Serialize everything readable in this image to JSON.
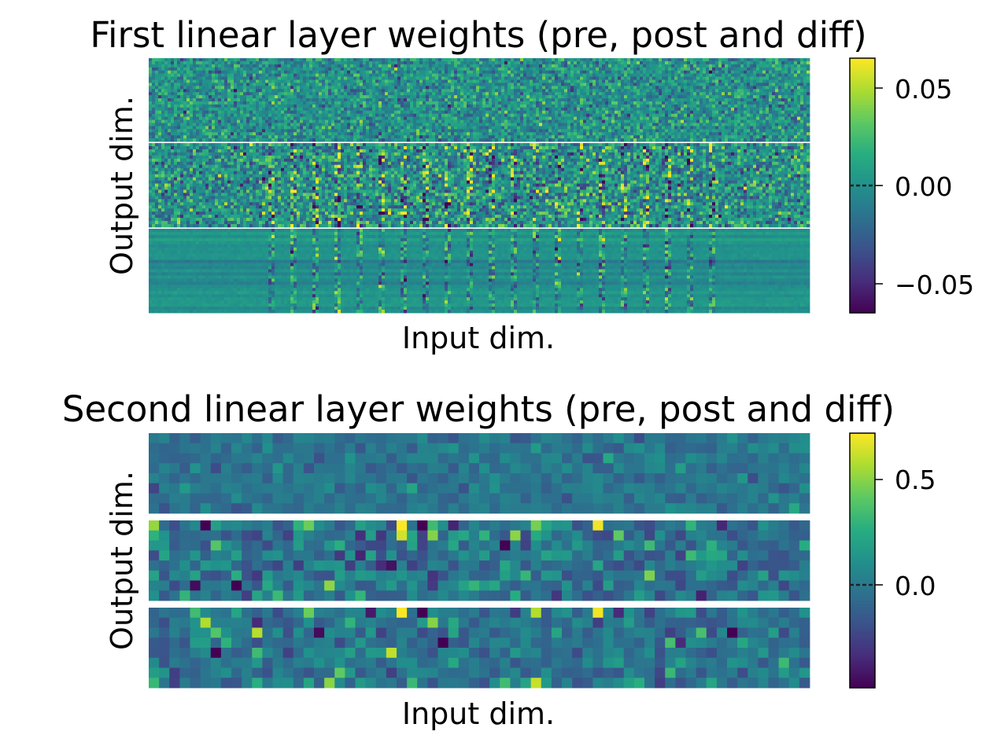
{
  "chart_data": [
    {
      "type": "heatmap",
      "title": "First linear layer weights (pre, post and diff)",
      "xlabel": "Input dim.",
      "ylabel": "Output dim.",
      "colormap": "viridis",
      "grid": false,
      "legend": "colorbar-right",
      "panels": [
        "pre",
        "post",
        "diff"
      ],
      "grid_cells": {
        "cols": 210,
        "rows_per_panel": 27
      },
      "clim": [
        -0.065,
        0.065
      ],
      "zero_marker": 0.0,
      "colorbar_ticks": [
        {
          "value": 0.05,
          "label": "0.05"
        },
        {
          "value": 0.0,
          "label": "0.00"
        },
        {
          "value": -0.05,
          "label": "−0.05"
        }
      ],
      "panel_stats": [
        {
          "name": "pre",
          "std": 0.016,
          "pattern": "noise"
        },
        {
          "name": "post",
          "std": 0.02,
          "pattern": "noise+columns"
        },
        {
          "name": "diff",
          "std": 0.012,
          "pattern": "rows+columns"
        }
      ]
    },
    {
      "type": "heatmap",
      "title": "Second linear layer weights (pre, post and diff)",
      "xlabel": "Input dim.",
      "ylabel": "Output dim.",
      "colormap": "viridis",
      "grid": false,
      "legend": "colorbar-right",
      "panels": [
        "pre",
        "post",
        "diff"
      ],
      "grid_cells": {
        "cols": 64,
        "rows_per_panel": 8
      },
      "clim": [
        -0.45,
        0.72
      ],
      "zero_marker": 0.0,
      "colorbar_ticks": [
        {
          "value": 0.5,
          "label": "0.5"
        },
        {
          "value": 0.0,
          "label": "0.0"
        }
      ],
      "panel_stats": [
        {
          "name": "pre",
          "std": 0.07,
          "pattern": "noise"
        },
        {
          "name": "post",
          "std": 0.13,
          "pattern": "noise+outliers"
        },
        {
          "name": "diff",
          "std": 0.11,
          "pattern": "noise+outliers"
        }
      ]
    }
  ]
}
